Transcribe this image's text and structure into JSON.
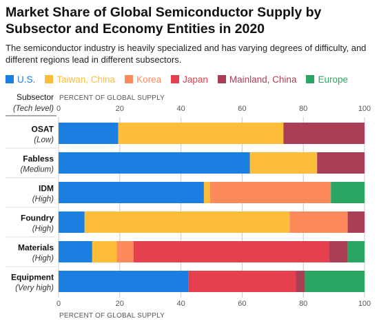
{
  "title": "Market Share of Global Semiconductor Supply by Subsector and Economy Entities in 2020",
  "subtitle": "The semiconductor industry is heavily specialized and has varying degrees of difficulty, and different regions lead in different subsectors.",
  "chart_data": {
    "type": "bar",
    "orientation": "horizontal",
    "stacked": true,
    "column_header": "Subsector",
    "column_header_sub": "(Tech level)",
    "xlabel_top": "PERCENT OF GLOBAL SUPPLY",
    "xlabel_bottom": "PERCENT OF GLOBAL SUPPLY",
    "xlim": [
      0,
      100
    ],
    "xticks": [
      0,
      20,
      40,
      60,
      80,
      100
    ],
    "grid": true,
    "legend_position": "top",
    "categories": [
      {
        "name": "OSAT",
        "level": "(Low)"
      },
      {
        "name": "Fabless",
        "level": "(Medium)"
      },
      {
        "name": "IDM",
        "level": "(High)"
      },
      {
        "name": "Foundry",
        "level": "(High)"
      },
      {
        "name": "Materials",
        "level": "(High)"
      },
      {
        "name": "Equipment",
        "level": "(Very high)"
      }
    ],
    "series": [
      {
        "name": "U.S.",
        "color": "#1a7fe0",
        "values": [
          19.5,
          62.5,
          47.5,
          8.5,
          11,
          42.5
        ]
      },
      {
        "name": "Taiwan, China",
        "color": "#fbbd3a",
        "values": [
          54,
          22,
          2,
          67,
          8,
          0
        ]
      },
      {
        "name": "Korea",
        "color": "#fd8a5b",
        "values": [
          0,
          0,
          39.5,
          19,
          5.5,
          0
        ]
      },
      {
        "name": "Japan",
        "color": "#e5404e",
        "values": [
          0,
          0,
          0,
          0,
          64,
          35
        ]
      },
      {
        "name": "Mainland, China",
        "color": "#a93e55",
        "values": [
          26.5,
          15.5,
          0,
          5.5,
          6,
          3
        ]
      },
      {
        "name": "Europe",
        "color": "#2aa562",
        "values": [
          0,
          0,
          11,
          0,
          5.5,
          19.5
        ]
      }
    ]
  }
}
